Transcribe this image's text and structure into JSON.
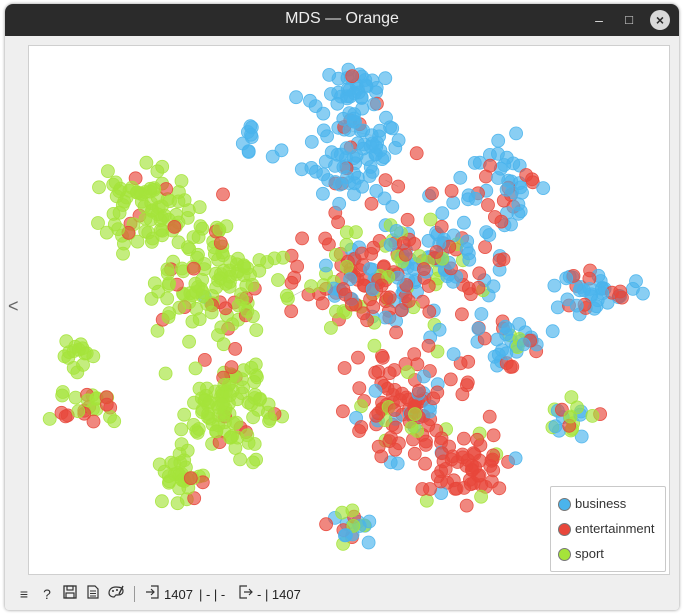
{
  "window": {
    "title": "MDS — Orange",
    "minimize_glyph": "–",
    "maximize_glyph": "□",
    "close_glyph": "×"
  },
  "sidebar": {
    "collapse_glyph": "<"
  },
  "plot": {
    "legend": [
      {
        "label": "business",
        "color": "#4ab4ec"
      },
      {
        "label": "entertainment",
        "color": "#e8473b"
      },
      {
        "label": "sport",
        "color": "#a5e43a"
      }
    ]
  },
  "statusbar": {
    "icons": [
      "menu-icon",
      "help-icon",
      "save-icon",
      "report-icon",
      "visual-settings-icon"
    ],
    "input_count": "1407",
    "input_rest": "| - | -",
    "output_rest": "- | 1407"
  }
}
